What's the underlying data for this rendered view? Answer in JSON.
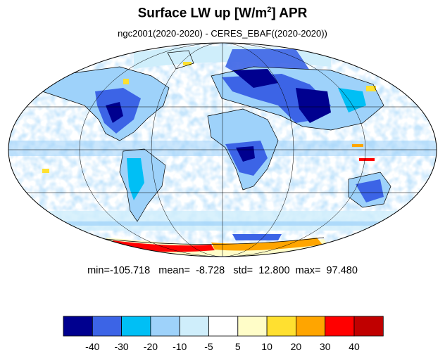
{
  "title": {
    "main": "Surface LW up [W/m",
    "superscript": "2",
    "suffix": "]  APR"
  },
  "subtitle": "ngc2001(2020-2020) - CERES_EBAF((2020-2020))",
  "stats": {
    "min_label": "min=",
    "min": "-105.718",
    "mean_label": "mean=",
    "mean": "-8.728",
    "std_label": "std=",
    "std": "12.800",
    "max_label": "max=",
    "max": "97.480"
  },
  "map": {
    "projection": "mollweide",
    "center_longitude": 0,
    "graticule_longitudes": [
      -120,
      -60,
      0,
      60,
      120
    ],
    "graticule_latitudes": [
      -60,
      -30,
      0,
      30,
      60
    ]
  },
  "colorbar": {
    "ticks": [
      "-40",
      "-30",
      "-20",
      "-10",
      "-5",
      "5",
      "10",
      "20",
      "30",
      "40"
    ],
    "colors": [
      "#00008f",
      "#3c64e6",
      "#00bff5",
      "#9ed2fa",
      "#cfeefb",
      "#ffffff",
      "#fffdc8",
      "#ffe030",
      "#ffa500",
      "#ff0000",
      "#c00000"
    ]
  }
}
